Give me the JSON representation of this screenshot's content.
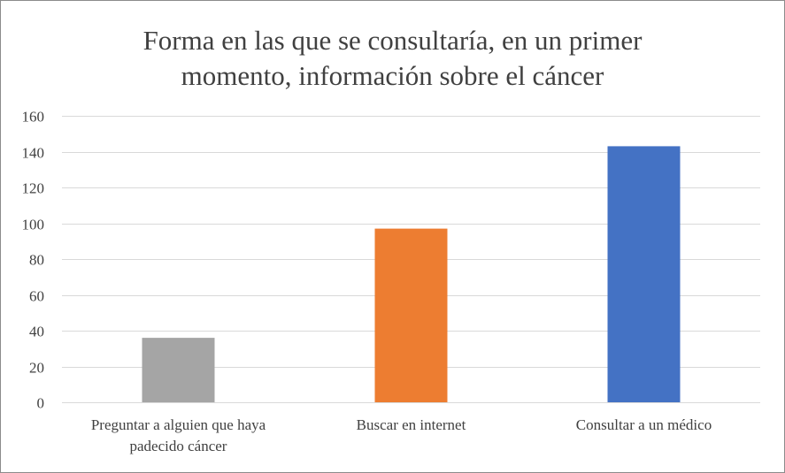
{
  "chart_data": {
    "type": "bar",
    "title_lines": [
      "Forma en las que se consultaría,  en un primer",
      "momento, información  sobre el cáncer"
    ],
    "categories": [
      [
        "Preguntar a alguien que haya",
        "padecido cáncer"
      ],
      [
        "Buscar en internet"
      ],
      [
        "Consultar a un médico"
      ]
    ],
    "values": [
      36,
      97,
      143
    ],
    "colors": [
      "#a5a5a5",
      "#ed7d31",
      "#4472c4"
    ],
    "ylim": [
      0,
      160
    ],
    "yticks": [
      0,
      20,
      40,
      60,
      80,
      100,
      120,
      140,
      160
    ],
    "grid": true,
    "gridline_color": "#d9d9d9"
  }
}
